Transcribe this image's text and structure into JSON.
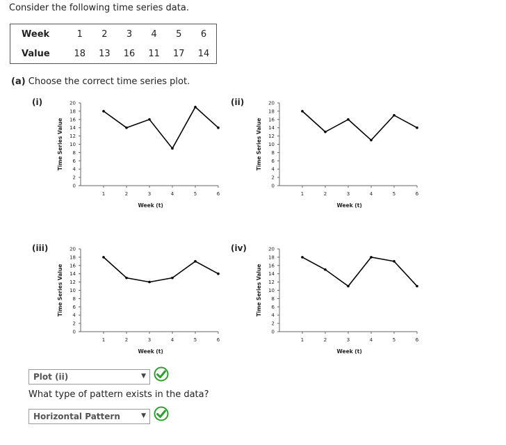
{
  "intro": "Consider the following time series data.",
  "table": {
    "week_header": "Week",
    "value_header": "Value",
    "weeks": [
      "1",
      "2",
      "3",
      "4",
      "5",
      "6"
    ],
    "values": [
      "18",
      "13",
      "16",
      "11",
      "17",
      "14"
    ]
  },
  "question_a": {
    "prefix": "(a)",
    "text": "Choose the correct time series plot."
  },
  "chart_data": [
    {
      "label": "(i)",
      "type": "line",
      "x": [
        1,
        2,
        3,
        4,
        5,
        6
      ],
      "y": [
        18,
        14,
        16,
        9,
        19,
        14
      ],
      "xlabel": "Week (t)",
      "ylabel": "Time Series Value",
      "ylim": [
        0,
        20
      ],
      "yticks": [
        0,
        2,
        4,
        6,
        8,
        10,
        12,
        14,
        16,
        18,
        20
      ],
      "xticks": [
        1,
        2,
        3,
        4,
        5,
        6
      ],
      "grid": false
    },
    {
      "label": "(ii)",
      "type": "line",
      "x": [
        1,
        2,
        3,
        4,
        5,
        6
      ],
      "y": [
        18,
        13,
        16,
        11,
        17,
        14
      ],
      "xlabel": "Week (t)",
      "ylabel": "Time Series Value",
      "ylim": [
        0,
        20
      ],
      "yticks": [
        0,
        2,
        4,
        6,
        8,
        10,
        12,
        14,
        16,
        18,
        20
      ],
      "xticks": [
        1,
        2,
        3,
        4,
        5,
        6
      ],
      "grid": false
    },
    {
      "label": "(iii)",
      "type": "line",
      "x": [
        1,
        2,
        3,
        4,
        5,
        6
      ],
      "y": [
        18,
        13,
        12,
        13,
        17,
        14
      ],
      "xlabel": "Week (t)",
      "ylabel": "Time Series Value",
      "ylim": [
        0,
        20
      ],
      "yticks": [
        0,
        2,
        4,
        6,
        8,
        10,
        12,
        14,
        16,
        18,
        20
      ],
      "xticks": [
        1,
        2,
        3,
        4,
        5,
        6
      ],
      "grid": false
    },
    {
      "label": "(iv)",
      "type": "line",
      "x": [
        1,
        2,
        3,
        4,
        5,
        6
      ],
      "y": [
        18,
        15,
        11,
        18,
        17,
        11
      ],
      "xlabel": "Week (t)",
      "ylabel": "Time Series Value",
      "ylim": [
        0,
        20
      ],
      "yticks": [
        0,
        2,
        4,
        6,
        8,
        10,
        12,
        14,
        16,
        18,
        20
      ],
      "xticks": [
        1,
        2,
        3,
        4,
        5,
        6
      ],
      "grid": false
    }
  ],
  "answer_a": {
    "selected": "Plot (ii)"
  },
  "question_b": {
    "text": "What type of pattern exists in the data?"
  },
  "answer_b": {
    "selected": "Horizontal Pattern"
  },
  "colors": {
    "check_green": "#2e9e2e",
    "line": "#000000"
  },
  "icons": {
    "correct": "check-circle-icon",
    "dropdown": "chevron-down-icon"
  }
}
